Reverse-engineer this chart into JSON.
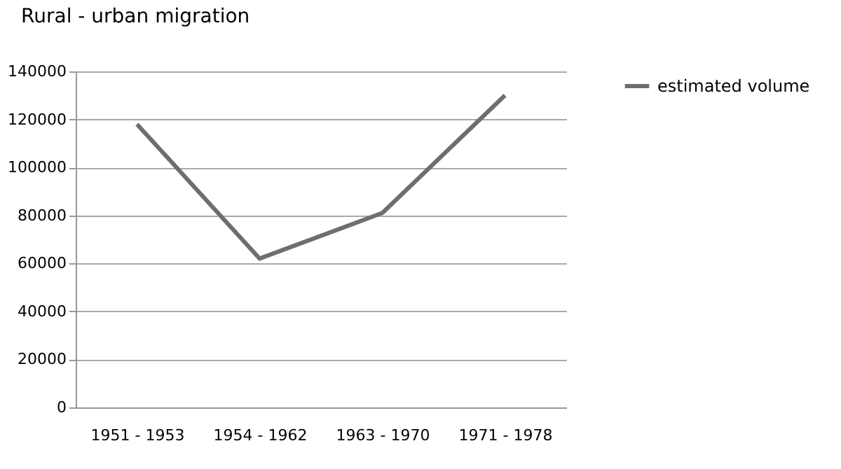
{
  "chart_data": {
    "type": "line",
    "title": "Rural - urban migration",
    "categories": [
      "1951 - 1953",
      "1954 - 1962",
      "1963 - 1970",
      "1971 - 1978"
    ],
    "series": [
      {
        "name": "estimated volume",
        "color": "#6e6e6e",
        "values": [
          118000,
          62000,
          81000,
          130000
        ]
      }
    ],
    "ylim": [
      0,
      140000
    ],
    "yticks": [
      0,
      20000,
      40000,
      60000,
      80000,
      100000,
      120000,
      140000
    ],
    "grid": "y",
    "legend": "right",
    "marker": "none",
    "line_style": "solid"
  }
}
